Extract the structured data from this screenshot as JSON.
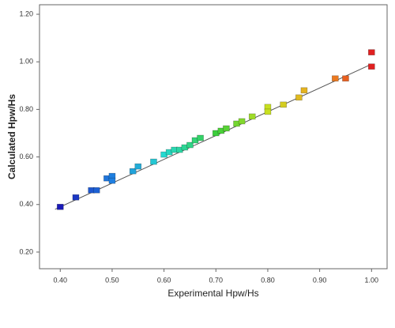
{
  "chart_data": {
    "type": "scatter",
    "x_label": "Experimental Hpw/Hs",
    "y_label": "Calculated Hpw/Hs",
    "x": [
      0.4,
      0.43,
      0.46,
      0.47,
      0.49,
      0.5,
      0.5,
      0.54,
      0.55,
      0.58,
      0.6,
      0.61,
      0.62,
      0.63,
      0.64,
      0.65,
      0.66,
      0.67,
      0.7,
      0.71,
      0.72,
      0.74,
      0.75,
      0.77,
      0.8,
      0.8,
      0.83,
      0.86,
      0.87,
      0.93,
      0.95,
      1.0,
      1.0
    ],
    "values": [
      0.39,
      0.43,
      0.46,
      0.46,
      0.51,
      0.52,
      0.5,
      0.54,
      0.56,
      0.58,
      0.61,
      0.62,
      0.63,
      0.63,
      0.64,
      0.65,
      0.67,
      0.68,
      0.7,
      0.71,
      0.72,
      0.74,
      0.75,
      0.77,
      0.81,
      0.79,
      0.82,
      0.85,
      0.88,
      0.93,
      0.93,
      1.04,
      0.98
    ],
    "color_stops": [
      "#1a1ab8",
      "#1f7fe0",
      "#25d9d0",
      "#3ccf3c",
      "#c8e020",
      "#f0a020",
      "#e02020"
    ],
    "trendline": {
      "x": [
        0.39,
        1.0
      ],
      "y": [
        0.38,
        0.99
      ],
      "color": "#555555"
    },
    "xlim": [
      0.36,
      1.03
    ],
    "ylim": [
      0.13,
      1.24
    ],
    "xticks": [
      {
        "value": 0.4,
        "label": "0.40"
      },
      {
        "value": 0.5,
        "label": "0.50"
      },
      {
        "value": 0.6,
        "label": "0.60"
      },
      {
        "value": 0.7,
        "label": "0.70"
      },
      {
        "value": 0.8,
        "label": "0.80"
      },
      {
        "value": 0.9,
        "label": "0.90"
      },
      {
        "value": 1.0,
        "label": "1.00"
      }
    ],
    "yticks": [
      {
        "value": 0.2,
        "label": "0.20"
      },
      {
        "value": 0.4,
        "label": "0.40"
      },
      {
        "value": 0.6,
        "label": "0.60"
      },
      {
        "value": 0.8,
        "label": "0.80"
      },
      {
        "value": 1.0,
        "label": "1.00"
      },
      {
        "value": 1.2,
        "label": "1.20"
      }
    ]
  }
}
